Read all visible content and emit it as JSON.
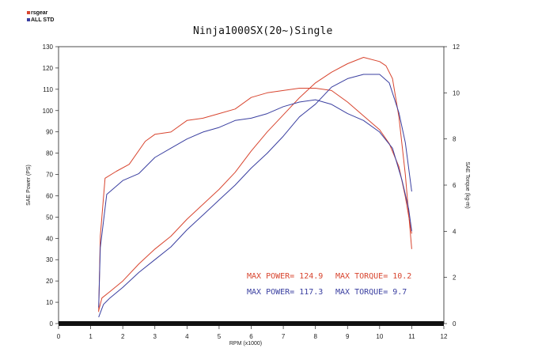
{
  "legend": [
    {
      "name": "rsgear",
      "color": "#d8452f"
    },
    {
      "name": "ALL STD",
      "color": "#3a3fa0"
    }
  ],
  "chart_data": {
    "type": "line",
    "title": "Ninja1000SX(20~)Single",
    "xlabel": "RPM (x1000)",
    "ylabel": "SAE Power (PS)",
    "y2label": "SAE Torque (kg-m)",
    "xlim": [
      0,
      12
    ],
    "ylim": [
      0,
      130
    ],
    "y2lim": [
      0,
      12
    ],
    "xticks": [
      0,
      1,
      2,
      3,
      4,
      5,
      6,
      7,
      8,
      9,
      10,
      11,
      12
    ],
    "yticks": [
      0,
      10,
      20,
      30,
      40,
      50,
      60,
      70,
      80,
      90,
      100,
      110,
      120,
      130
    ],
    "y2ticks": [
      0,
      2,
      4,
      6,
      8,
      10,
      12
    ],
    "grid": false,
    "series": [
      {
        "name": "rsgear",
        "measure": "power",
        "axis": "left",
        "color": "#d8452f",
        "points": [
          [
            1.25,
            6
          ],
          [
            1.35,
            12
          ],
          [
            1.6,
            15
          ],
          [
            2,
            20
          ],
          [
            2.5,
            28
          ],
          [
            3,
            35
          ],
          [
            3.5,
            41
          ],
          [
            4,
            49
          ],
          [
            4.5,
            56
          ],
          [
            5,
            63
          ],
          [
            5.5,
            71
          ],
          [
            6,
            81
          ],
          [
            6.5,
            90
          ],
          [
            7,
            98
          ],
          [
            7.5,
            106
          ],
          [
            8,
            113
          ],
          [
            8.5,
            118
          ],
          [
            9,
            122
          ],
          [
            9.5,
            125
          ],
          [
            10,
            123
          ],
          [
            10.2,
            121
          ],
          [
            10.4,
            115
          ],
          [
            10.6,
            97
          ],
          [
            10.8,
            70
          ],
          [
            11,
            35
          ]
        ]
      },
      {
        "name": "rsgear",
        "measure": "torque",
        "axis": "right",
        "color": "#d8452f",
        "points": [
          [
            1.25,
            0.5
          ],
          [
            1.3,
            3.8
          ],
          [
            1.45,
            6.3
          ],
          [
            1.8,
            6.6
          ],
          [
            2.2,
            6.9
          ],
          [
            2.7,
            7.9
          ],
          [
            3,
            8.2
          ],
          [
            3.5,
            8.3
          ],
          [
            4,
            8.8
          ],
          [
            4.5,
            8.9
          ],
          [
            5,
            9.1
          ],
          [
            5.5,
            9.3
          ],
          [
            6,
            9.8
          ],
          [
            6.5,
            10.0
          ],
          [
            7,
            10.1
          ],
          [
            7.5,
            10.2
          ],
          [
            8,
            10.2
          ],
          [
            8.5,
            10.1
          ],
          [
            9,
            9.6
          ],
          [
            9.5,
            9.0
          ],
          [
            10,
            8.4
          ],
          [
            10.3,
            7.8
          ],
          [
            10.6,
            6.8
          ],
          [
            10.8,
            5.5
          ],
          [
            11,
            3.9
          ]
        ]
      },
      {
        "name": "ALL STD",
        "measure": "power",
        "axis": "left",
        "color": "#3a3fa0",
        "points": [
          [
            1.25,
            3
          ],
          [
            1.4,
            9
          ],
          [
            1.6,
            12
          ],
          [
            2,
            17
          ],
          [
            2.5,
            24
          ],
          [
            3,
            30
          ],
          [
            3.5,
            36
          ],
          [
            4,
            44
          ],
          [
            4.5,
            51
          ],
          [
            5,
            58
          ],
          [
            5.5,
            65
          ],
          [
            6,
            73
          ],
          [
            6.5,
            80
          ],
          [
            7,
            88
          ],
          [
            7.5,
            97
          ],
          [
            8,
            103
          ],
          [
            8.5,
            111
          ],
          [
            9,
            115
          ],
          [
            9.5,
            117
          ],
          [
            10,
            117
          ],
          [
            10.3,
            113
          ],
          [
            10.6,
            99
          ],
          [
            10.8,
            85
          ],
          [
            11,
            62
          ]
        ]
      },
      {
        "name": "ALL STD",
        "measure": "torque",
        "axis": "right",
        "color": "#3a3fa0",
        "points": [
          [
            1.25,
            0.7
          ],
          [
            1.3,
            3.3
          ],
          [
            1.5,
            5.6
          ],
          [
            2,
            6.2
          ],
          [
            2.5,
            6.5
          ],
          [
            3,
            7.2
          ],
          [
            3.5,
            7.6
          ],
          [
            4,
            8.0
          ],
          [
            4.5,
            8.3
          ],
          [
            5,
            8.5
          ],
          [
            5.5,
            8.8
          ],
          [
            6,
            8.9
          ],
          [
            6.5,
            9.1
          ],
          [
            7,
            9.4
          ],
          [
            7.5,
            9.6
          ],
          [
            8,
            9.7
          ],
          [
            8.5,
            9.5
          ],
          [
            9,
            9.1
          ],
          [
            9.5,
            8.8
          ],
          [
            10,
            8.3
          ],
          [
            10.4,
            7.6
          ],
          [
            10.7,
            6.2
          ],
          [
            10.9,
            5.0
          ],
          [
            11,
            4.0
          ]
        ]
      }
    ],
    "annotations": [
      {
        "text": "MAX POWER= 124.9",
        "color": "#d8452f"
      },
      {
        "text": "MAX TORQUE= 10.2",
        "color": "#d8452f"
      },
      {
        "text": "MAX POWER= 117.3",
        "color": "#3a3fa0"
      },
      {
        "text": "MAX TORQUE= 9.7",
        "color": "#3a3fa0"
      }
    ]
  }
}
